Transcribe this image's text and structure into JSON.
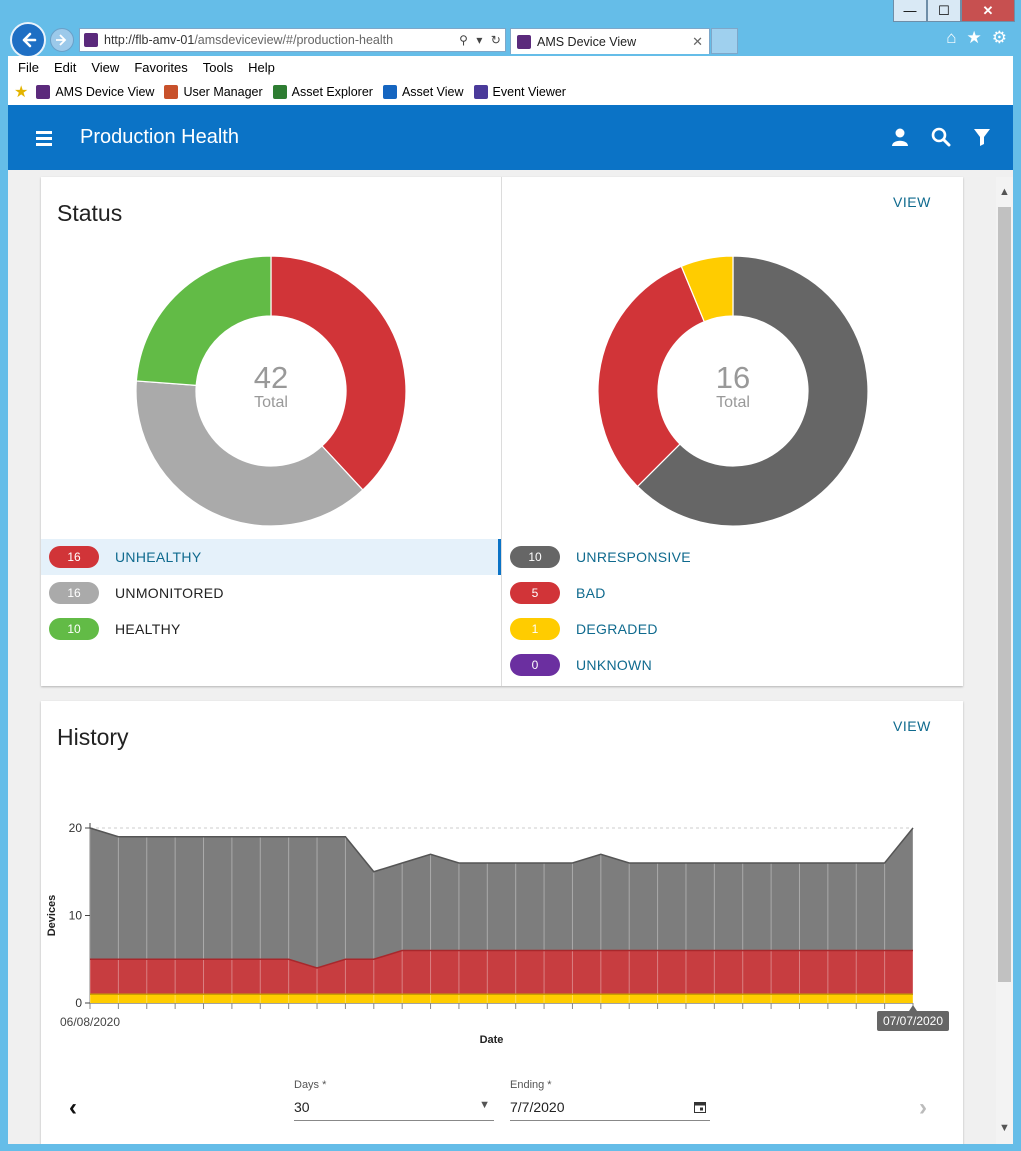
{
  "browser": {
    "url_host": "http://flb-amv-01",
    "url_path": "/amsdeviceview/#/production-health",
    "tab_title": "AMS Device View",
    "tab_close": "✕",
    "window_controls": {
      "minimize": "—",
      "maximize": "☐",
      "close": "✕"
    },
    "menu": [
      "File",
      "Edit",
      "View",
      "Favorites",
      "Tools",
      "Help"
    ],
    "favorites": [
      {
        "label": "AMS Device View",
        "color": "#5b2a7c"
      },
      {
        "label": "User Manager",
        "color": "#c8512b"
      },
      {
        "label": "Asset Explorer",
        "color": "#2e7d32"
      },
      {
        "label": "Asset View",
        "color": "#1565c0"
      },
      {
        "label": "Event Viewer",
        "color": "#4a3a9a"
      }
    ]
  },
  "app": {
    "title": "Production Health",
    "accent": "#0b73c6"
  },
  "status": {
    "title": "Status",
    "view_label": "VIEW",
    "left_donut": {
      "total": "42",
      "total_label": "Total",
      "items": [
        {
          "count": "16",
          "label": "UNHEALTHY",
          "color": "#d13438",
          "value": 16,
          "active": true,
          "link": true
        },
        {
          "count": "16",
          "label": "UNMONITORED",
          "color": "#aaaaaa",
          "value": 16,
          "active": false,
          "link": false
        },
        {
          "count": "10",
          "label": "HEALTHY",
          "color": "#62bb46",
          "value": 10,
          "active": false,
          "link": false
        }
      ]
    },
    "right_donut": {
      "total": "16",
      "total_label": "Total",
      "items": [
        {
          "count": "10",
          "label": "UNRESPONSIVE",
          "color": "#666666",
          "value": 10
        },
        {
          "count": "5",
          "label": "BAD",
          "color": "#d13438",
          "value": 5
        },
        {
          "count": "1",
          "label": "DEGRADED",
          "color": "#ffcc00",
          "value": 1
        },
        {
          "count": "0",
          "label": "UNKNOWN",
          "color": "#6b2fa0",
          "value": 0
        }
      ]
    }
  },
  "history": {
    "title": "History",
    "view_label": "VIEW",
    "days_label": "Days *",
    "days_value": "30",
    "ending_label": "Ending *",
    "ending_value": "7/7/2020",
    "prev": "‹",
    "next": "›"
  },
  "chart_data": {
    "type": "area",
    "ylabel": "Devices",
    "xlabel": "Date",
    "ylim": [
      0,
      20
    ],
    "yticks": [
      "0",
      "10",
      "20"
    ],
    "x_start_label": "06/08/2020",
    "x_end_label": "07/07/2020",
    "grid_top_dashed": true,
    "series": [
      {
        "color": "#ffcc00",
        "values": [
          1,
          1,
          1,
          1,
          1,
          1,
          1,
          1,
          1,
          1,
          1,
          1,
          1,
          1,
          1,
          1,
          1,
          1,
          1,
          1,
          1,
          1,
          1,
          1,
          1,
          1,
          1,
          1,
          1,
          1
        ]
      },
      {
        "color": "#d13438",
        "values": [
          5,
          5,
          5,
          5,
          5,
          5,
          5,
          5,
          4,
          5,
          5,
          6,
          6,
          6,
          6,
          6,
          6,
          6,
          6,
          6,
          6,
          6,
          6,
          6,
          6,
          6,
          6,
          6,
          6,
          6
        ]
      },
      {
        "color": "#666666",
        "values": [
          20,
          19,
          19,
          19,
          19,
          19,
          19,
          19,
          19,
          19,
          15,
          16,
          17,
          16,
          16,
          16,
          16,
          16,
          17,
          16,
          16,
          16,
          16,
          16,
          16,
          16,
          16,
          16,
          16,
          20
        ]
      }
    ]
  }
}
